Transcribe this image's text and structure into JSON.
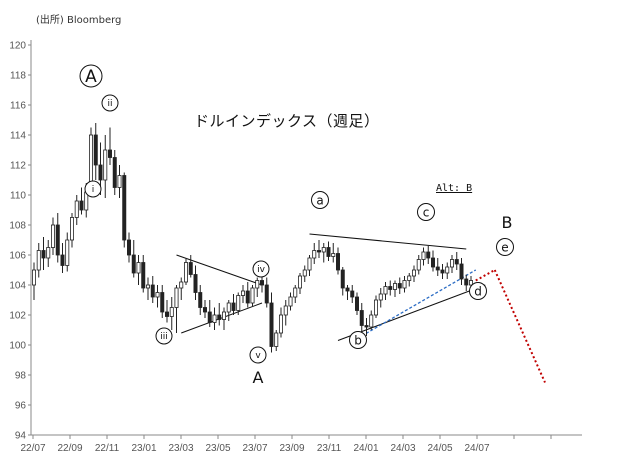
{
  "source": "(出所) Bloomberg",
  "title": "ドルインデックス（週足）",
  "alt_note": "Alt: B",
  "chart_data": {
    "type": "candlestick",
    "ylim": [
      94,
      120
    ],
    "y_ticks": [
      94,
      96,
      98,
      100,
      102,
      104,
      106,
      108,
      110,
      112,
      114,
      116,
      118,
      120
    ],
    "x_tick_labels": [
      "22/07",
      "22/09",
      "22/11",
      "23/01",
      "23/03",
      "23/05",
      "23/07",
      "23/09",
      "23/11",
      "24/01",
      "24/03",
      "24/05",
      "24/07"
    ],
    "candles": [
      [
        104.0,
        105.5,
        103.0,
        105.0
      ],
      [
        105.0,
        106.8,
        104.5,
        106.3
      ],
      [
        106.3,
        107.2,
        105.0,
        105.8
      ],
      [
        105.8,
        107.0,
        105.2,
        106.5
      ],
      [
        106.5,
        108.5,
        106.0,
        108.0
      ],
      [
        108.0,
        108.8,
        105.5,
        106.0
      ],
      [
        106.0,
        106.8,
        104.8,
        105.3
      ],
      [
        105.3,
        107.5,
        104.9,
        107.0
      ],
      [
        107.0,
        108.8,
        106.5,
        108.5
      ],
      [
        108.5,
        110.0,
        108.0,
        109.6
      ],
      [
        109.6,
        110.5,
        108.7,
        109.0
      ],
      [
        109.0,
        110.8,
        108.5,
        110.2
      ],
      [
        110.2,
        114.5,
        110.0,
        114.0
      ],
      [
        114.0,
        114.8,
        111.0,
        112.0
      ],
      [
        112.0,
        113.5,
        110.0,
        111.0
      ],
      [
        111.0,
        114.0,
        109.8,
        113.0
      ],
      [
        113.0,
        114.5,
        112.0,
        112.5
      ],
      [
        112.5,
        113.0,
        110.0,
        110.5
      ],
      [
        110.5,
        112.0,
        109.8,
        111.3
      ],
      [
        111.3,
        111.5,
        106.5,
        107.0
      ],
      [
        107.0,
        107.5,
        105.5,
        106.0
      ],
      [
        106.0,
        107.0,
        104.5,
        104.8
      ],
      [
        104.8,
        106.0,
        104.0,
        105.5
      ],
      [
        105.5,
        106.0,
        103.5,
        103.8
      ],
      [
        103.8,
        104.5,
        103.0,
        104.0
      ],
      [
        104.0,
        104.6,
        102.8,
        103.2
      ],
      [
        103.2,
        104.0,
        102.5,
        103.5
      ],
      [
        103.5,
        104.0,
        101.8,
        102.2
      ],
      [
        102.2,
        103.0,
        101.5,
        101.9
      ],
      [
        101.9,
        103.2,
        101.0,
        102.5
      ],
      [
        102.5,
        104.0,
        100.8,
        103.8
      ],
      [
        103.8,
        104.5,
        103.0,
        104.2
      ],
      [
        104.2,
        105.8,
        104.0,
        105.5
      ],
      [
        105.5,
        106.0,
        104.5,
        104.7
      ],
      [
        104.7,
        105.3,
        103.0,
        103.5
      ],
      [
        103.5,
        104.0,
        102.0,
        102.5
      ],
      [
        102.5,
        103.0,
        101.8,
        102.2
      ],
      [
        102.2,
        103.0,
        101.2,
        101.5
      ],
      [
        101.5,
        102.5,
        101.0,
        102.0
      ],
      [
        102.0,
        102.8,
        101.3,
        101.7
      ],
      [
        101.7,
        102.5,
        101.0,
        102.2
      ],
      [
        102.2,
        103.0,
        101.6,
        102.8
      ],
      [
        102.8,
        103.4,
        102.0,
        102.3
      ],
      [
        102.3,
        103.5,
        102.0,
        103.3
      ],
      [
        103.3,
        104.0,
        102.8,
        103.6
      ],
      [
        103.6,
        104.2,
        102.5,
        102.8
      ],
      [
        102.8,
        104.0,
        102.6,
        103.8
      ],
      [
        103.8,
        104.5,
        103.2,
        104.3
      ],
      [
        104.3,
        104.8,
        103.5,
        104.0
      ],
      [
        104.0,
        104.5,
        102.5,
        102.8
      ],
      [
        102.8,
        103.5,
        99.5,
        99.9
      ],
      [
        99.9,
        101.0,
        99.6,
        100.8
      ],
      [
        100.8,
        102.5,
        100.5,
        102.0
      ],
      [
        102.0,
        103.0,
        101.3,
        102.6
      ],
      [
        102.6,
        103.5,
        102.3,
        103.2
      ],
      [
        103.2,
        104.0,
        102.8,
        103.8
      ],
      [
        103.8,
        104.8,
        103.4,
        104.6
      ],
      [
        104.6,
        105.3,
        104.2,
        105.0
      ],
      [
        105.0,
        106.0,
        104.6,
        105.8
      ],
      [
        105.8,
        106.8,
        105.4,
        106.3
      ],
      [
        106.3,
        107.0,
        105.8,
        106.2
      ],
      [
        106.2,
        106.8,
        105.5,
        106.5
      ],
      [
        106.5,
        106.9,
        105.6,
        105.9
      ],
      [
        105.9,
        106.8,
        105.5,
        106.1
      ],
      [
        106.1,
        106.5,
        104.7,
        105.0
      ],
      [
        105.0,
        105.2,
        103.3,
        103.8
      ],
      [
        103.8,
        104.0,
        103.0,
        103.6
      ],
      [
        103.6,
        104.0,
        102.8,
        103.2
      ],
      [
        103.2,
        103.5,
        102.0,
        102.3
      ],
      [
        102.3,
        102.8,
        100.9,
        101.3
      ],
      [
        101.3,
        101.8,
        100.6,
        101.2
      ],
      [
        101.2,
        102.3,
        101.0,
        102.0
      ],
      [
        102.0,
        103.3,
        101.8,
        103.0
      ],
      [
        103.0,
        103.8,
        102.5,
        103.4
      ],
      [
        103.4,
        104.2,
        103.0,
        103.9
      ],
      [
        103.9,
        104.3,
        103.3,
        103.7
      ],
      [
        103.7,
        104.3,
        103.2,
        104.1
      ],
      [
        104.1,
        104.5,
        103.4,
        103.8
      ],
      [
        103.8,
        104.6,
        103.5,
        104.3
      ],
      [
        104.3,
        104.8,
        103.9,
        104.6
      ],
      [
        104.6,
        105.3,
        104.2,
        105.0
      ],
      [
        105.0,
        106.0,
        104.7,
        105.7
      ],
      [
        105.7,
        106.5,
        105.3,
        106.2
      ],
      [
        106.2,
        106.6,
        105.4,
        105.8
      ],
      [
        105.8,
        106.3,
        104.9,
        105.2
      ],
      [
        105.2,
        105.8,
        104.6,
        105.0
      ],
      [
        105.0,
        105.4,
        104.4,
        104.8
      ],
      [
        104.8,
        105.5,
        104.4,
        105.2
      ],
      [
        105.2,
        106.0,
        104.8,
        105.7
      ],
      [
        105.7,
        106.2,
        105.0,
        105.4
      ],
      [
        105.4,
        105.8,
        104.0,
        104.4
      ],
      [
        104.4,
        104.7,
        103.6,
        104.0
      ],
      [
        104.0,
        104.6,
        103.8,
        104.3
      ]
    ],
    "annotations": {
      "A_upper": "A",
      "A_lower": "A",
      "B": "B",
      "i": "i",
      "ii": "ii",
      "iii": "iii",
      "iv": "iv",
      "v": "v",
      "a": "a",
      "b": "b",
      "c": "c",
      "d": "d",
      "e": "e"
    }
  }
}
